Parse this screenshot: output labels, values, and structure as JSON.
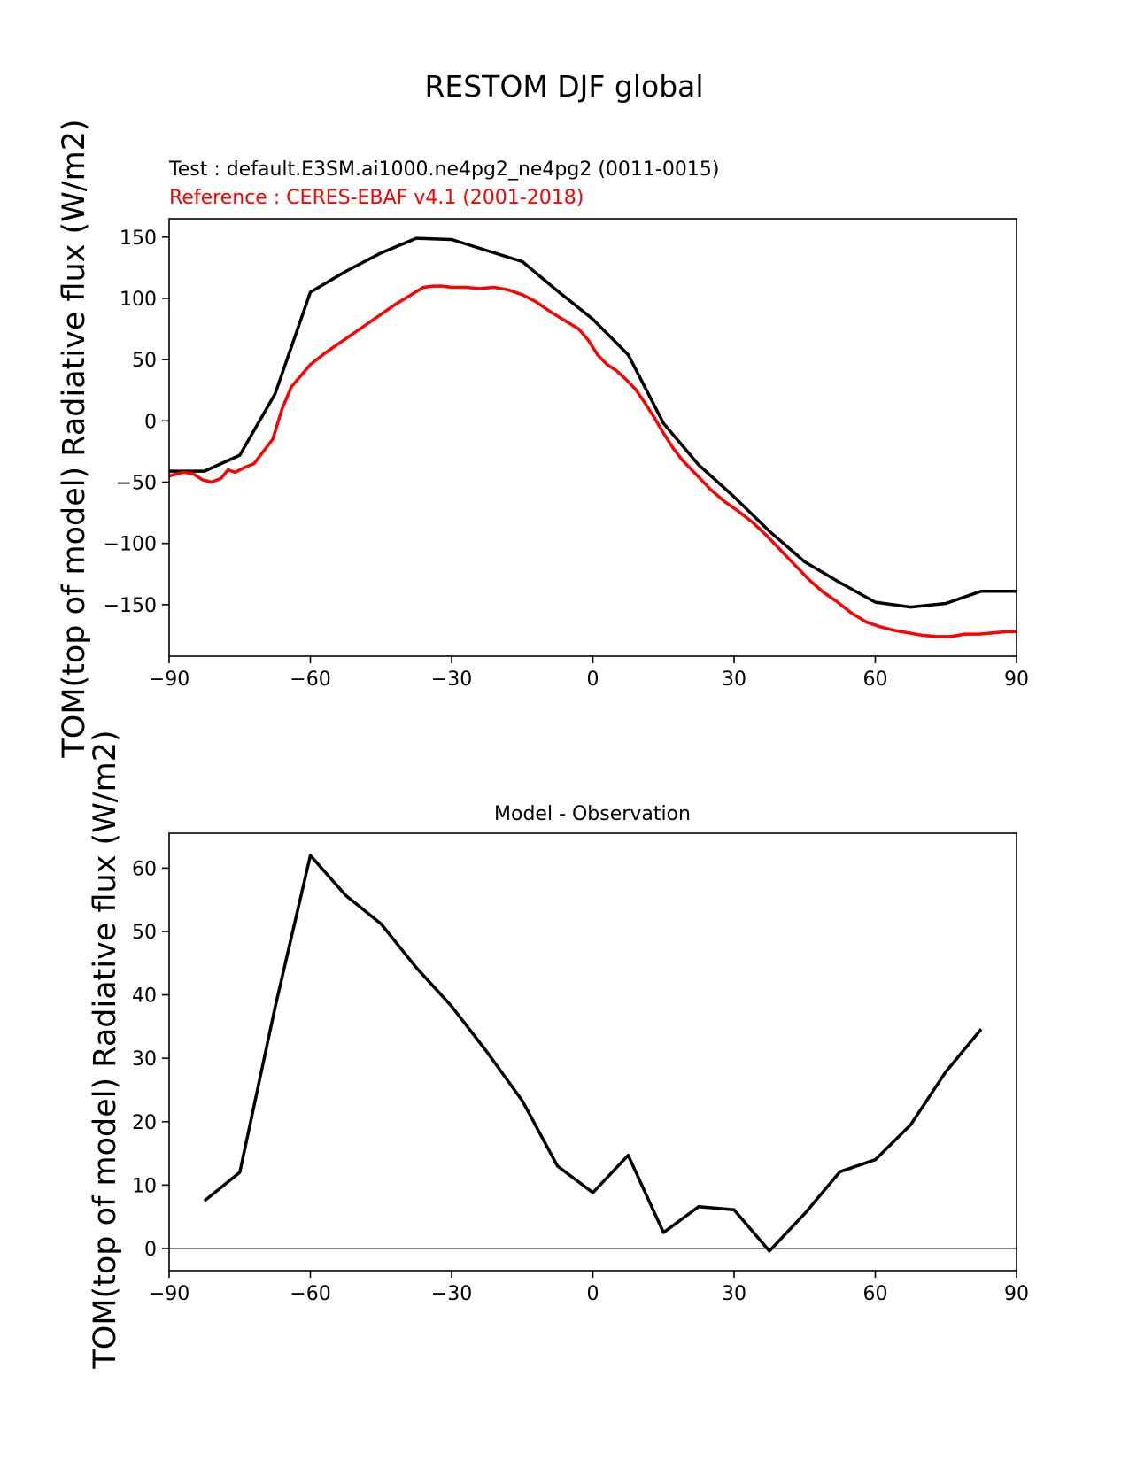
{
  "figure": {
    "suptitle": "RESTOM DJF global",
    "test_label": "Test : default.E3SM.ai1000.ne4pg2_ne4pg2 (0011-0015)",
    "ref_label": "Reference : CERES-EBAF v4.1 (2001-2018)",
    "colors": {
      "test": "#000000",
      "reference": "#ff0000",
      "zero_line": "#808080"
    }
  },
  "chart_data": [
    {
      "type": "line",
      "title": "",
      "xlabel": "",
      "ylabel": "TOM(top of model) Radiative flux (W/m2)",
      "xlim": [
        -90,
        90
      ],
      "ylim": [
        -192,
        165
      ],
      "xticks": [
        -90,
        -60,
        -30,
        0,
        30,
        60,
        90
      ],
      "yticks": [
        -150,
        -100,
        -50,
        0,
        50,
        100,
        150
      ],
      "series": [
        {
          "name": "Test",
          "color": "#000000",
          "x": [
            -90,
            -82.5,
            -75,
            -67.5,
            -60,
            -52.5,
            -45,
            -37.5,
            -30,
            -22.5,
            -15,
            -7.5,
            0,
            7.5,
            15,
            22.5,
            30,
            37.5,
            45,
            52.5,
            60,
            67.5,
            75,
            82.5,
            90
          ],
          "y": [
            -41,
            -41,
            -28,
            22,
            105,
            122,
            137,
            149,
            148,
            139,
            130,
            106,
            83,
            54,
            -2,
            -36,
            -62,
            -90,
            -115,
            -132,
            -148,
            -152,
            -149,
            -139,
            -139
          ]
        },
        {
          "name": "Reference",
          "color": "#ff0000",
          "x": [
            -90,
            -87,
            -85,
            -83,
            -81,
            -79,
            -77.5,
            -76,
            -74,
            -72,
            -70,
            -68,
            -66,
            -64,
            -62,
            -60,
            -57,
            -54,
            -51,
            -48,
            -45,
            -42,
            -39,
            -36,
            -34,
            -32,
            -30,
            -27,
            -24,
            -21,
            -18,
            -15,
            -12,
            -9,
            -6,
            -3,
            -1,
            0,
            1,
            3,
            5,
            7,
            9,
            11,
            13,
            15,
            17,
            19,
            22,
            25,
            28,
            31,
            34,
            37,
            40,
            43,
            46,
            49,
            52,
            55,
            58,
            61,
            64,
            67,
            70,
            73,
            76,
            79,
            82,
            85,
            88,
            90
          ],
          "y": [
            -45,
            -42,
            -43,
            -48,
            -50,
            -47,
            -40,
            -42,
            -38,
            -35,
            -25,
            -15,
            10,
            28,
            37,
            46,
            55,
            63,
            71,
            79,
            87,
            95,
            102,
            109,
            110,
            110,
            109,
            109,
            108,
            109,
            107,
            103,
            97,
            89,
            82,
            75,
            66,
            60,
            54,
            46,
            41,
            34,
            26,
            15,
            3,
            -10,
            -22,
            -32,
            -44,
            -56,
            -66,
            -74,
            -83,
            -94,
            -106,
            -118,
            -130,
            -140,
            -148,
            -157,
            -164,
            -168,
            -171,
            -173,
            -175,
            -176,
            -176,
            -174,
            -174,
            -173,
            -172,
            -172
          ]
        }
      ]
    },
    {
      "type": "line",
      "title": "Model - Observation",
      "xlabel": "",
      "ylabel": "TOM(top of model) Radiative flux (W/m2)",
      "xlim": [
        -90,
        90
      ],
      "ylim": [
        -3.5,
        65.5
      ],
      "xticks": [
        -90,
        -60,
        -30,
        0,
        30,
        60,
        90
      ],
      "yticks": [
        0,
        10,
        20,
        30,
        40,
        50,
        60
      ],
      "zero_line": true,
      "series": [
        {
          "color": "#000000",
          "x": [
            -82.5,
            -75,
            -67.5,
            -60,
            -52.5,
            -45,
            -37.5,
            -30,
            -22.5,
            -15,
            -7.5,
            0,
            7.5,
            15,
            22.5,
            30,
            37.5,
            45,
            52.5,
            60,
            67.5,
            75,
            82.5
          ],
          "y": [
            7.5,
            12,
            38,
            62,
            55.7,
            51.2,
            44.3,
            38.2,
            31,
            23.3,
            13,
            8.8,
            14.7,
            2.5,
            6.6,
            6.1,
            -0.4,
            5.5,
            12.1,
            14,
            19.5,
            27.9,
            34.6
          ]
        }
      ]
    }
  ]
}
